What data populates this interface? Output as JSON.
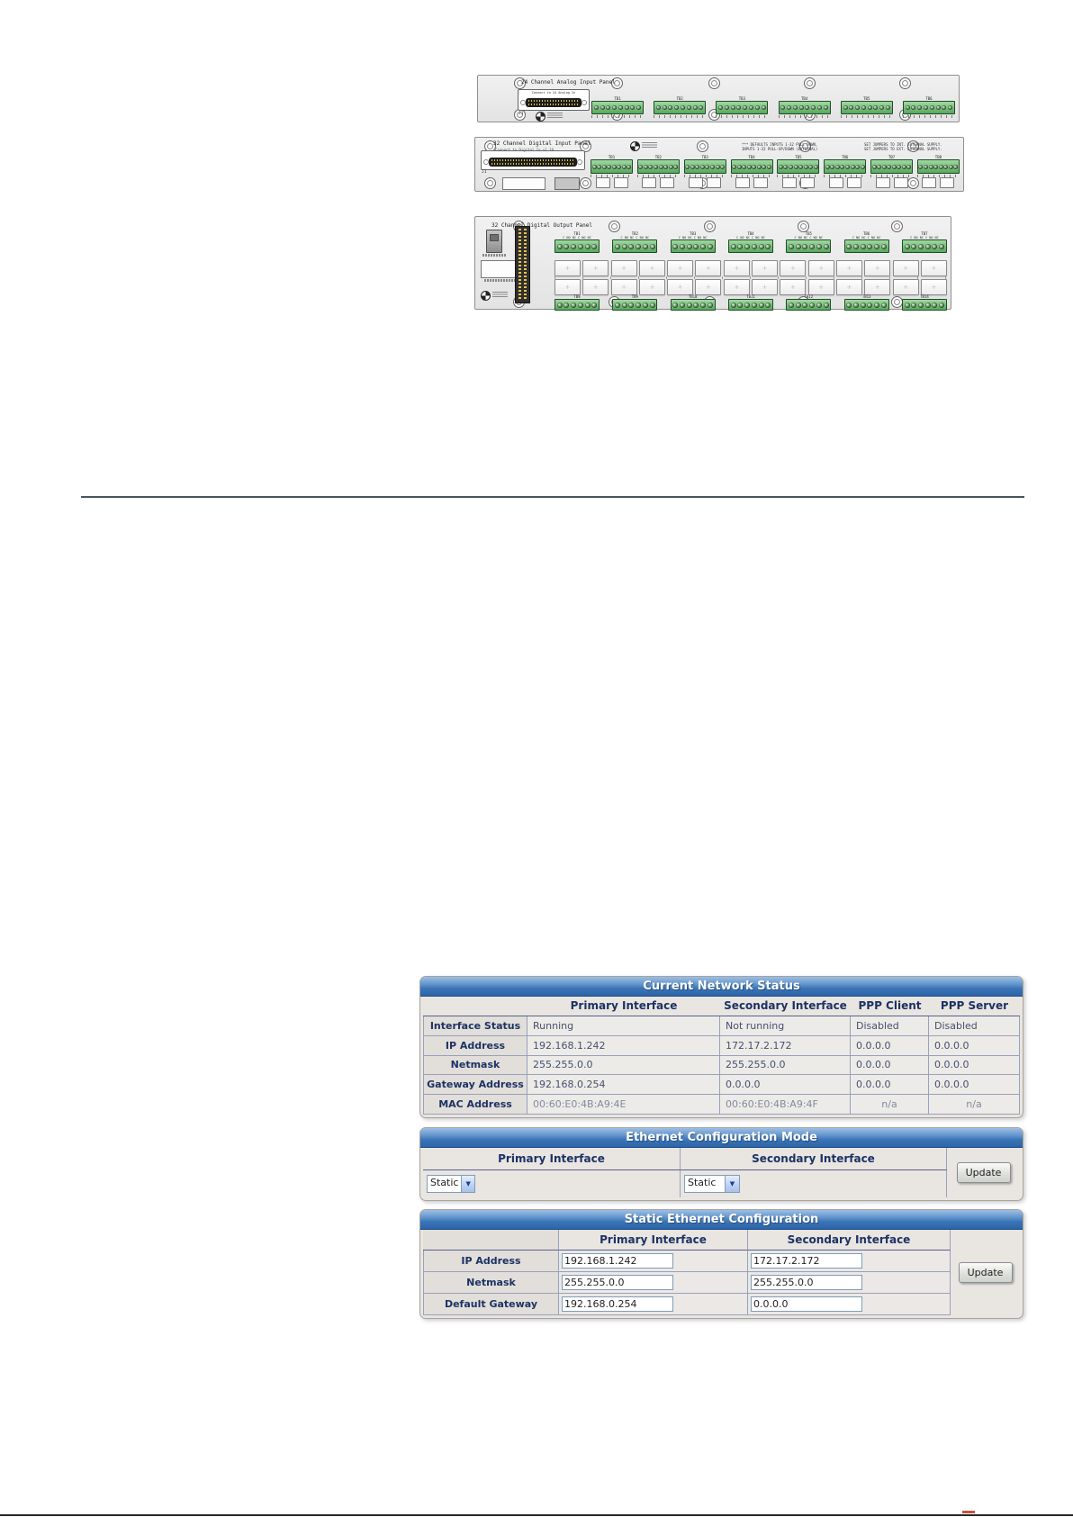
{
  "colors": {
    "title_blue_top": "#9dbfe4",
    "title_blue_bottom": "#2b65a9",
    "table_navy": "#1c3264",
    "card_bg": "#e9e5e1",
    "terminal_green": "#58a75e",
    "terminal_green_light": "#a0d9a0"
  },
  "panels": {
    "analog_input": {
      "title": "24 Channel Analog Input Panel",
      "connector_label": "Connect to 24 Analog In",
      "connector_ref": "J1",
      "terminal_blocks": [
        "TB1",
        "TB2",
        "TB3",
        "TB4",
        "TB5",
        "TB6"
      ]
    },
    "digital_input": {
      "title": "32 Channel Digital Input Panel",
      "subtitle": "Connect to Digital In v1.10",
      "connector_ref": "J1",
      "note_defaults": "*** DEFAULTS INPUTS 1-32 PULL DOWN,\nINPUTS 1-32 PULL-UP/DOWN (EXTERNAL)",
      "note_jumpers": "SET JUMPERS TO INT. EXTERNAL SUPPLY.\nSET JUMPERS TO EXT. EXTERNAL SUPPLY.",
      "terminal_blocks": [
        "TB1",
        "TB2",
        "TB3",
        "TB4",
        "TB5",
        "TB6",
        "TB7",
        "TB8"
      ]
    },
    "digital_output": {
      "title": "32 Channel Digital Output Panel",
      "pin_label": "C NO NC C NO NC",
      "terminal_blocks_top": [
        "TB1",
        "TB2",
        "TB3",
        "TB4",
        "TB5",
        "TB6",
        "TB7"
      ],
      "terminal_blocks_bottom": [
        "TB8",
        "TB9",
        "TB10",
        "TB11",
        "TB12",
        "TB13",
        "TB14"
      ]
    }
  },
  "tables": {
    "network_status": {
      "title": "Current Network Status",
      "columns": [
        "",
        "Primary Interface",
        "Secondary Interface",
        "PPP Client",
        "PPP Server"
      ],
      "rows": [
        {
          "label": "Interface Status",
          "values": [
            "Running",
            "Not running",
            "Disabled",
            "Disabled"
          ]
        },
        {
          "label": "IP Address",
          "values": [
            "192.168.1.242",
            "172.17.2.172",
            "0.0.0.0",
            "0.0.0.0"
          ]
        },
        {
          "label": "Netmask",
          "values": [
            "255.255.0.0",
            "255.255.0.0",
            "0.0.0.0",
            "0.0.0.0"
          ]
        },
        {
          "label": "Gateway Address",
          "values": [
            "192.168.0.254",
            "0.0.0.0",
            "0.0.0.0",
            "0.0.0.0"
          ]
        },
        {
          "label": "MAC Address",
          "values": [
            "00:60:E0:4B:A9:4E",
            "00:60:E0:4B:A9:4F",
            "n/a",
            "n/a"
          ]
        }
      ]
    },
    "ethernet_mode": {
      "title": "Ethernet Configuration Mode",
      "columns": [
        "Primary Interface",
        "Secondary Interface"
      ],
      "primary_value": "Static",
      "secondary_value": "Static",
      "update_label": "Update"
    },
    "static_config": {
      "title": "Static Ethernet Configuration",
      "columns": [
        "Primary Interface",
        "Secondary Interface"
      ],
      "rows": [
        {
          "key": "ip-address",
          "label": "IP Address",
          "primary": "192.168.1.242",
          "secondary": "172.17.2.172"
        },
        {
          "key": "netmask",
          "label": "Netmask",
          "primary": "255.255.0.0",
          "secondary": "255.255.0.0"
        },
        {
          "key": "default-gateway",
          "label": "Default Gateway",
          "primary": "192.168.0.254",
          "secondary": "0.0.0.0"
        }
      ],
      "update_label": "Update"
    }
  }
}
